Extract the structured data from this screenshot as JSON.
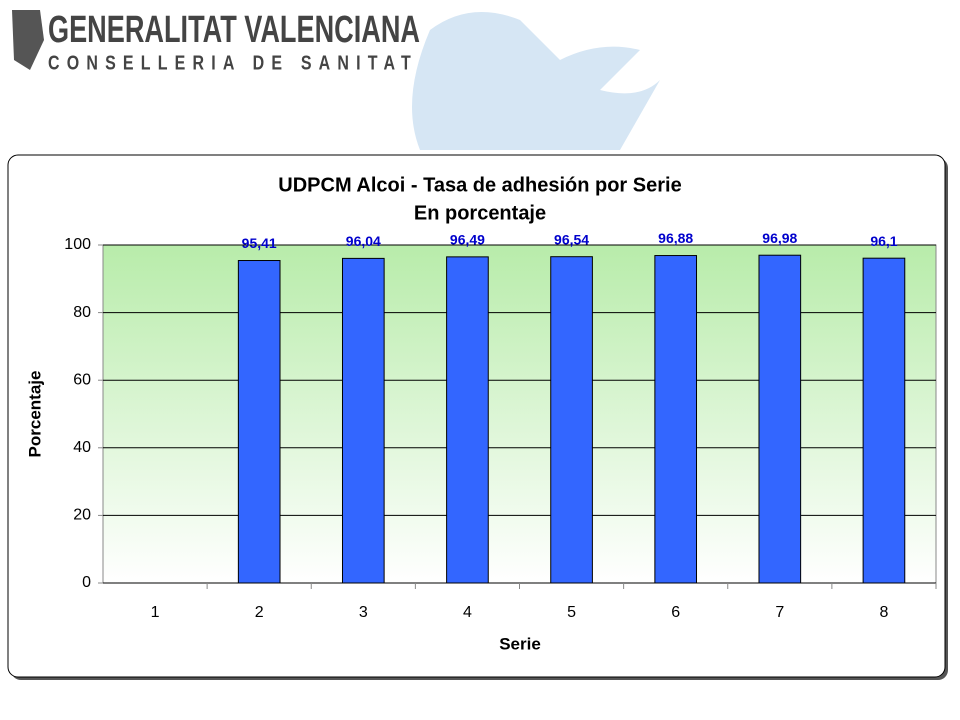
{
  "header": {
    "title": "GENERALITAT VALENCIANA",
    "subtitle": "CONSELLERIA DE SANITAT"
  },
  "chart_data": {
    "type": "bar",
    "title": "UDPCM Alcoi - Tasa de adhesión por Serie",
    "subtitle": "En porcentaje",
    "x_label": "Serie",
    "y_label": "Porcentaje",
    "categories": [
      "1",
      "2",
      "3",
      "4",
      "5",
      "6",
      "7",
      "8"
    ],
    "values": [
      null,
      95.41,
      96.04,
      96.49,
      96.54,
      96.88,
      96.98,
      96.1
    ],
    "value_labels": [
      null,
      "95,41",
      "96,04",
      "96,49",
      "96,54",
      "96,88",
      "96,98",
      "96,1"
    ],
    "color": "#3366ff",
    "ylim": [
      0,
      100
    ],
    "yticks": [
      0,
      20,
      40,
      60,
      80,
      100
    ],
    "grid": true
  }
}
